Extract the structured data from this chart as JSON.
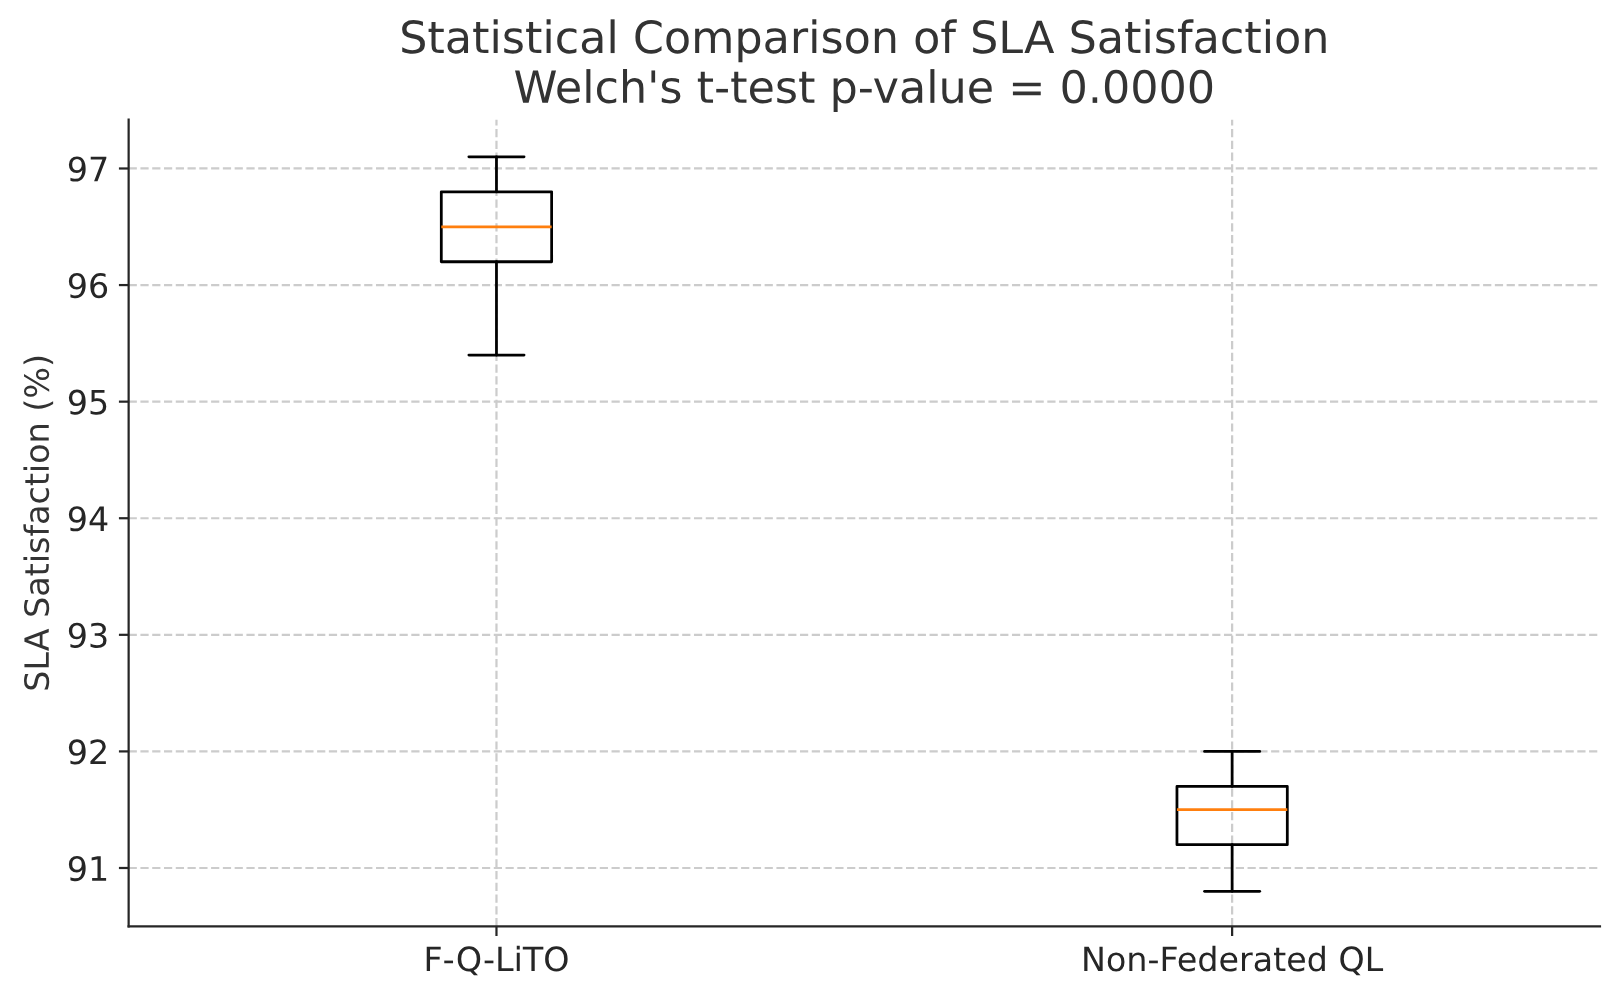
{
  "chart_data": {
    "type": "box",
    "title": "Statistical Comparison of SLA Satisfaction\nWelch's t-test p-value = 0.0000",
    "ylabel": "SLA Satisfaction (%)",
    "categories": [
      "F-Q-LiTO",
      "Non-Federated QL"
    ],
    "boxes": [
      {
        "low": 95.4,
        "q1": 96.2,
        "median": 96.5,
        "q3": 96.8,
        "high": 97.1
      },
      {
        "low": 90.8,
        "q1": 91.2,
        "median": 91.5,
        "q3": 91.7,
        "high": 92.0
      }
    ],
    "ylim": [
      90.5,
      97.42
    ],
    "yticks": [
      91,
      92,
      93,
      94,
      95,
      96,
      97
    ],
    "grid": true
  }
}
